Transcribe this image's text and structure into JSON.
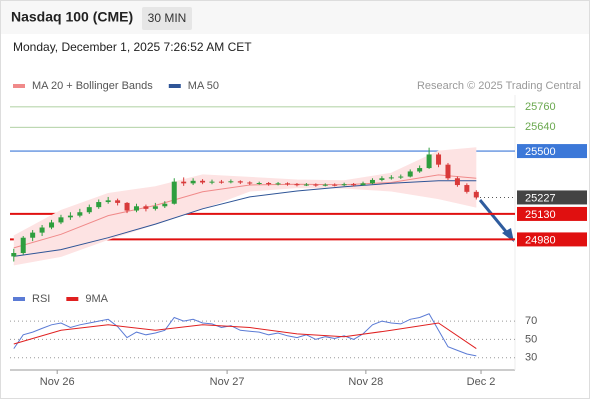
{
  "header": {
    "title": "Nasdaq 100 (CME)",
    "interval": "30 MIN",
    "datetime": "Monday, December 1, 2025 7:26:52 AM CET",
    "credit": "Research © 2025 Trading Central"
  },
  "chart_data": [
    {
      "type": "candlestick",
      "up_color": "#2e9e3e",
      "down_color": "#d83a3a",
      "xlim": [
        -0.4,
        53.1
      ],
      "ylim": [
        24800,
        25830
      ],
      "open": [
        24880,
        24900,
        24990,
        25020,
        25050,
        25080,
        25110,
        25120,
        25140,
        25170,
        25200,
        25210,
        25195,
        25150,
        25175,
        25160,
        25175,
        25190,
        25320,
        25310,
        25325,
        25315,
        25320,
        25318,
        25322,
        25315,
        25310,
        25312,
        25305,
        25310,
        25305,
        25300,
        25303,
        25298,
        25302,
        25300,
        25305,
        25300,
        25310,
        25330,
        25340,
        25345,
        25350,
        25380,
        25400,
        25480,
        25420,
        25340,
        25300,
        25260
      ],
      "high": [
        24925,
        25000,
        25035,
        25065,
        25095,
        25125,
        25140,
        25160,
        25185,
        25215,
        25230,
        25220,
        25200,
        25190,
        25185,
        25195,
        25205,
        25340,
        25345,
        25340,
        25335,
        25332,
        25330,
        25333,
        25328,
        25322,
        25320,
        25318,
        25318,
        25316,
        25312,
        25312,
        25310,
        25310,
        25310,
        25314,
        25312,
        25320,
        25340,
        25352,
        25358,
        25362,
        25392,
        25415,
        25520,
        25490,
        25430,
        25350,
        25310,
        25270
      ],
      "low": [
        24850,
        24890,
        24970,
        25000,
        25040,
        25070,
        25095,
        25110,
        25130,
        25160,
        25190,
        25180,
        25135,
        25140,
        25145,
        25150,
        25165,
        25185,
        25295,
        25300,
        25305,
        25305,
        25308,
        25310,
        25306,
        25300,
        25302,
        25296,
        25298,
        25296,
        25292,
        25294,
        25290,
        25292,
        25292,
        25294,
        25292,
        25296,
        25305,
        25322,
        25332,
        25336,
        25345,
        25372,
        25395,
        25405,
        25330,
        25290,
        25250,
        25215
      ],
      "close": [
        24900,
        24990,
        25020,
        25050,
        25080,
        25110,
        25120,
        25140,
        25170,
        25200,
        25210,
        25195,
        25150,
        25175,
        25160,
        25175,
        25190,
        25320,
        25310,
        25325,
        25315,
        25320,
        25318,
        25322,
        25315,
        25310,
        25312,
        25305,
        25310,
        25305,
        25300,
        25303,
        25298,
        25302,
        25300,
        25305,
        25300,
        25310,
        25330,
        25340,
        25345,
        25350,
        25380,
        25400,
        25480,
        25420,
        25340,
        25300,
        25260,
        25227
      ],
      "series": [
        {
          "name": "MA 20 + Bollinger Bands",
          "color": "#f08a8a",
          "band_color": "#fde3e3",
          "x": [
            0,
            5,
            10,
            15,
            20,
            25,
            30,
            35,
            40,
            45,
            49
          ],
          "values": [
            24930,
            25010,
            25120,
            25180,
            25260,
            25300,
            25305,
            25302,
            25315,
            25360,
            25340
          ],
          "upper": [
            25000,
            25150,
            25250,
            25290,
            25360,
            25345,
            25330,
            25325,
            25370,
            25500,
            25520
          ],
          "lower": [
            24830,
            24880,
            24980,
            25070,
            25160,
            25265,
            25285,
            25282,
            25265,
            25220,
            25170
          ]
        },
        {
          "name": "MA 50",
          "color": "#2f5597",
          "x": [
            0,
            5,
            10,
            15,
            20,
            25,
            30,
            35,
            40,
            45,
            49
          ],
          "values": [
            24880,
            24920,
            24990,
            25070,
            25160,
            25230,
            25265,
            25290,
            25310,
            25325,
            25325
          ]
        }
      ],
      "levels": [
        {
          "value": 25760,
          "color": "#6aa84f",
          "style": "text"
        },
        {
          "value": 25640,
          "color": "#6aa84f",
          "style": "text"
        },
        {
          "value": 25500,
          "color": "#3c78d8",
          "style": "box"
        },
        {
          "value": 25227,
          "color": "#444444",
          "style": "dotted"
        },
        {
          "value": 25130,
          "color": "#e01010",
          "style": "box"
        },
        {
          "value": 24980,
          "color": "#e01010",
          "style": "box"
        }
      ]
    },
    {
      "type": "line",
      "xlim": [
        -0.4,
        53.1
      ],
      "ylim": [
        22,
        80
      ],
      "yticks": [
        30,
        50,
        70
      ],
      "xticks": [
        {
          "value": 4.6,
          "label": "Nov 26"
        },
        {
          "value": 22.6,
          "label": "Nov 27"
        },
        {
          "value": 37.3,
          "label": "Nov 28"
        },
        {
          "value": 49.5,
          "label": "Dec 2"
        }
      ],
      "series": [
        {
          "name": "RSI",
          "color": "#5b7bd5",
          "x": [
            0,
            1,
            2,
            3,
            4,
            5,
            6,
            7,
            8,
            9,
            10,
            11,
            12,
            13,
            14,
            15,
            16,
            17,
            18,
            19,
            20,
            21,
            22,
            23,
            24,
            25,
            26,
            27,
            28,
            29,
            30,
            31,
            32,
            33,
            34,
            35,
            36,
            37,
            38,
            39,
            40,
            41,
            42,
            43,
            44,
            45,
            46,
            47,
            48,
            49
          ],
          "values": [
            40,
            55,
            58,
            62,
            66,
            68,
            63,
            66,
            68,
            70,
            72,
            64,
            52,
            58,
            55,
            57,
            60,
            74,
            70,
            72,
            68,
            67,
            63,
            65,
            60,
            59,
            58,
            55,
            57,
            54,
            52,
            55,
            50,
            53,
            51,
            54,
            50,
            56,
            66,
            70,
            68,
            67,
            72,
            74,
            78,
            60,
            42,
            38,
            34,
            32
          ]
        },
        {
          "name": "9MA",
          "color": "#e02020",
          "x": [
            0,
            5,
            10,
            15,
            20,
            25,
            30,
            35,
            40,
            45,
            49
          ],
          "values": [
            45,
            60,
            66,
            60,
            66,
            63,
            56,
            53,
            60,
            68,
            40
          ]
        }
      ]
    }
  ]
}
